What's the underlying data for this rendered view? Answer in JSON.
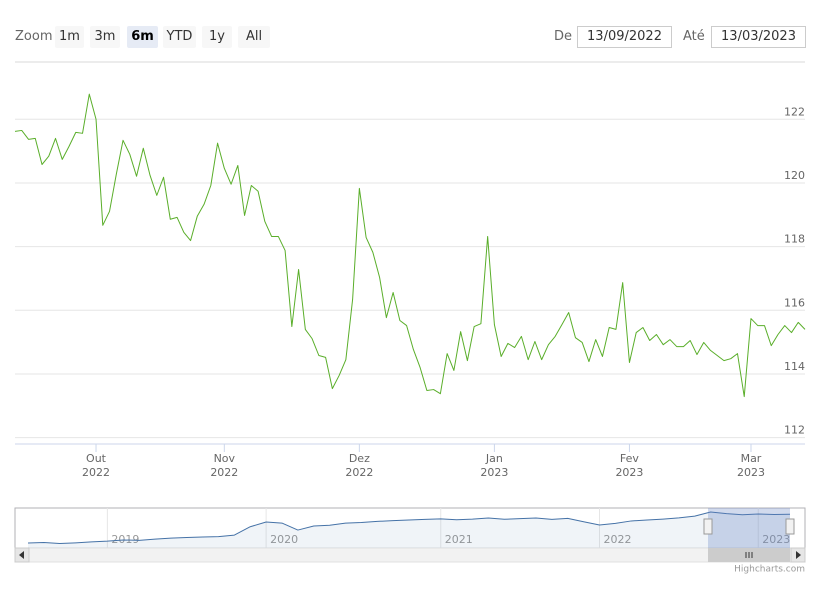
{
  "range_selector": {
    "zoom_label": "Zoom",
    "buttons": [
      "1m",
      "3m",
      "6m",
      "YTD",
      "1y",
      "All"
    ],
    "selected_button": 2,
    "from_label": "De",
    "from": "13/09/2022",
    "to_label": "Até",
    "to": "13/03/2023"
  },
  "chart_data": {
    "type": "line",
    "color": "#5aae2a",
    "categories": [
      null,
      null,
      null,
      null,
      null,
      null,
      null,
      null,
      null,
      null,
      null,
      null,
      "Out 2022",
      null,
      null,
      null,
      null,
      null,
      null,
      null,
      null,
      null,
      null,
      null,
      null,
      null,
      null,
      null,
      null,
      null,
      null,
      "Nov 2022",
      null,
      null,
      null,
      null,
      null,
      null,
      null,
      null,
      null,
      null,
      null,
      null,
      null,
      null,
      null,
      null,
      null,
      null,
      null,
      "Dez 2022",
      null,
      null,
      null,
      null,
      null,
      null,
      null,
      null,
      null,
      null,
      null,
      null,
      null,
      null,
      null,
      null,
      null,
      null,
      null,
      "Jan 2023",
      null,
      null,
      null,
      null,
      null,
      null,
      null,
      null,
      null,
      null,
      null,
      null,
      null,
      null,
      null,
      null,
      null,
      null,
      null,
      "Fev 2023",
      null,
      null,
      null,
      null,
      null,
      null,
      null,
      null,
      null,
      null,
      null,
      null,
      null,
      null,
      null,
      null,
      null,
      "Mar 2023",
      null,
      null,
      null,
      null,
      null,
      null,
      null,
      null
    ],
    "values": [
      121.62,
      121.65,
      121.37,
      121.4,
      120.58,
      120.84,
      121.4,
      120.74,
      121.15,
      121.59,
      121.56,
      122.79,
      122.0,
      118.67,
      119.11,
      120.27,
      121.34,
      120.9,
      120.21,
      121.09,
      120.24,
      119.61,
      120.18,
      118.86,
      118.92,
      118.45,
      118.19,
      118.96,
      119.33,
      119.92,
      121.25,
      120.46,
      119.96,
      120.55,
      118.98,
      119.92,
      119.74,
      118.79,
      118.32,
      118.32,
      117.88,
      115.49,
      117.28,
      115.4,
      115.11,
      114.58,
      114.52,
      113.54,
      113.95,
      114.45,
      116.34,
      119.83,
      118.29,
      117.82,
      117.03,
      115.77,
      116.56,
      115.68,
      115.52,
      114.77,
      114.2,
      113.48,
      113.51,
      113.38,
      114.64,
      114.11,
      115.33,
      114.42,
      115.49,
      115.58,
      118.32,
      115.55,
      114.55,
      114.96,
      114.83,
      115.18,
      114.45,
      115.02,
      114.45,
      114.92,
      115.18,
      115.55,
      115.93,
      115.14,
      114.99,
      114.39,
      115.08,
      114.55,
      115.46,
      115.4,
      116.87,
      114.36,
      115.3,
      115.46,
      115.05,
      115.24,
      114.92,
      115.08,
      114.86,
      114.86,
      115.05,
      114.61,
      114.99,
      114.74,
      114.58,
      114.42,
      114.48,
      114.64,
      113.29,
      115.74,
      115.52,
      115.52,
      114.89,
      115.24,
      115.52,
      115.3,
      115.62,
      115.4
    ],
    "ylim": [
      111.8,
      123.8
    ],
    "yticks": [
      112,
      114,
      116,
      118,
      120,
      122
    ],
    "grid": true
  },
  "navigator": {
    "type": "line",
    "color": "#4572a7",
    "categories": [
      null,
      null,
      null,
      null,
      null,
      "2019",
      null,
      null,
      null,
      null,
      null,
      null,
      null,
      null,
      null,
      "2020",
      null,
      null,
      null,
      null,
      null,
      null,
      null,
      null,
      null,
      null,
      "2021",
      null,
      null,
      null,
      null,
      null,
      null,
      null,
      null,
      null,
      "2022",
      null,
      null,
      null,
      null,
      null,
      null,
      null,
      null,
      null,
      "2023",
      null,
      null
    ],
    "values": [
      103.3,
      103.6,
      103.0,
      103.4,
      104.0,
      104.5,
      105.3,
      105.0,
      105.8,
      106.5,
      106.9,
      107.2,
      107.5,
      108.5,
      114.0,
      117.1,
      116.4,
      111.8,
      114.5,
      115.0,
      116.4,
      116.8,
      117.5,
      118.0,
      118.4,
      118.8,
      119.2,
      118.6,
      119.0,
      119.7,
      118.9,
      119.3,
      119.7,
      118.8,
      119.5,
      117.3,
      115.1,
      116.2,
      117.8,
      118.4,
      119.0,
      119.8,
      121.0,
      123.7,
      122.6,
      121.9,
      122.4,
      122.0,
      122.2
    ],
    "ylim": [
      100,
      125
    ]
  },
  "credits": "Highcharts.com"
}
